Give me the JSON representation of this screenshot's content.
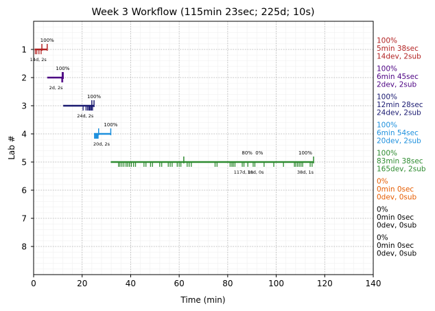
{
  "chart_data": {
    "type": "timeline",
    "title": "Week 3 Workflow (115min 23sec; 225d; 10s)",
    "xlabel": "Time (min)",
    "ylabel": "Lab #",
    "xlim": [
      0,
      140
    ],
    "ylim": [
      9,
      0
    ],
    "x_ticks": [
      0,
      20,
      40,
      60,
      80,
      100,
      120,
      140
    ],
    "y_ticks": [
      1,
      2,
      3,
      4,
      5,
      6,
      7,
      8
    ],
    "grid": true,
    "labs": [
      {
        "lab": 1,
        "color": "#b22222",
        "start": 0.4,
        "end": 5.6,
        "milestones": [
          {
            "x": 1.2,
            "label": ""
          },
          {
            "x": 3.4,
            "label": ""
          },
          {
            "x": 5.6,
            "label": "100%"
          }
        ],
        "dev_ticks": [
          0.7,
          1.3,
          2.2,
          3.1
        ],
        "sub_ticks": [
          3.4,
          5.6
        ],
        "bottom_label": "14d, 2s",
        "bottom_x": 1.9,
        "summary": [
          "100%",
          "5min 38sec",
          "14dev, 2sub"
        ]
      },
      {
        "lab": 2,
        "color": "#4b0082",
        "start": 5.6,
        "end": 12.4,
        "milestones": [
          {
            "x": 12.0,
            "label": "100%"
          }
        ],
        "dev_ticks": [
          11.6,
          12.0
        ],
        "sub_ticks": [
          11.8,
          12.2
        ],
        "bottom_label": "2d, 2s",
        "bottom_x": 9.2,
        "summary": [
          "100%",
          "6min 45sec",
          "2dev, 2sub"
        ]
      },
      {
        "lab": 3,
        "color": "#191970",
        "start": 12.2,
        "end": 24.9,
        "milestones": [
          {
            "x": 24.9,
            "label": "100%"
          }
        ],
        "dev_ticks": [
          20.4,
          21.6,
          22.2,
          22.7,
          23.1,
          23.5,
          23.9,
          24.3
        ],
        "sub_ticks": [
          24.0,
          24.9
        ],
        "bottom_label": "24d, 2s",
        "bottom_x": 21.3,
        "summary": [
          "100%",
          "12min 28sec",
          "24dev, 2sub"
        ]
      },
      {
        "lab": 4,
        "color": "#1e90dd",
        "start": 24.9,
        "end": 31.8,
        "milestones": [
          {
            "x": 31.8,
            "label": "100%"
          }
        ],
        "dev_ticks": [
          25.1,
          25.4,
          25.7,
          26.0,
          26.3,
          26.6
        ],
        "sub_ticks": [
          26.8,
          31.8
        ],
        "bottom_label": "20d, 2s",
        "bottom_x": 28.0,
        "summary": [
          "100%",
          "6min 54sec",
          "20dev, 2sub"
        ]
      },
      {
        "lab": 5,
        "color": "#2e8b30",
        "start": 31.8,
        "end": 115.4,
        "milestones": [
          {
            "x": 88.0,
            "label": "80%"
          },
          {
            "x": 93.0,
            "label": "0%"
          },
          {
            "x": 112.0,
            "label": "100%"
          }
        ],
        "dev_ticks": [
          35.0,
          35.6,
          36.4,
          37.2,
          38.1,
          38.8,
          39.5,
          40.3,
          41.2,
          42.0,
          45.5,
          46.3,
          48.2,
          49.0,
          52.0,
          52.8,
          55.5,
          56.3,
          57.1,
          59.2,
          60.0,
          60.7,
          63.3,
          64.1,
          65.0,
          74.8,
          75.6,
          81.0,
          81.7,
          82.3,
          83.0,
          86.0,
          86.7,
          88.3,
          90.5,
          91.2,
          95.0,
          99.0,
          103.0,
          107.5,
          108.1,
          108.8,
          109.5,
          110.2,
          110.9,
          114.0,
          114.8
        ],
        "sub_ticks": [
          61.9,
          115.4
        ],
        "bottom_labels": [
          {
            "x": 86.5,
            "text": "117d, 1s"
          },
          {
            "x": 91.5,
            "text": "10d, 0s"
          },
          {
            "x": 112.0,
            "text": "38d, 1s"
          }
        ],
        "summary": [
          "100%",
          "83min 38sec",
          "165dev, 2sub"
        ]
      },
      {
        "lab": 6,
        "color": "#e65c00",
        "summary": [
          "0%",
          "0min 0sec",
          "0dev, 0sub"
        ]
      },
      {
        "lab": 7,
        "color": "#000000",
        "summary": [
          "0%",
          "0min 0sec",
          "0dev, 0sub"
        ]
      },
      {
        "lab": 8,
        "color": "#000000",
        "summary": [
          "0%",
          "0min 0sec",
          "0dev, 0sub"
        ]
      }
    ]
  }
}
